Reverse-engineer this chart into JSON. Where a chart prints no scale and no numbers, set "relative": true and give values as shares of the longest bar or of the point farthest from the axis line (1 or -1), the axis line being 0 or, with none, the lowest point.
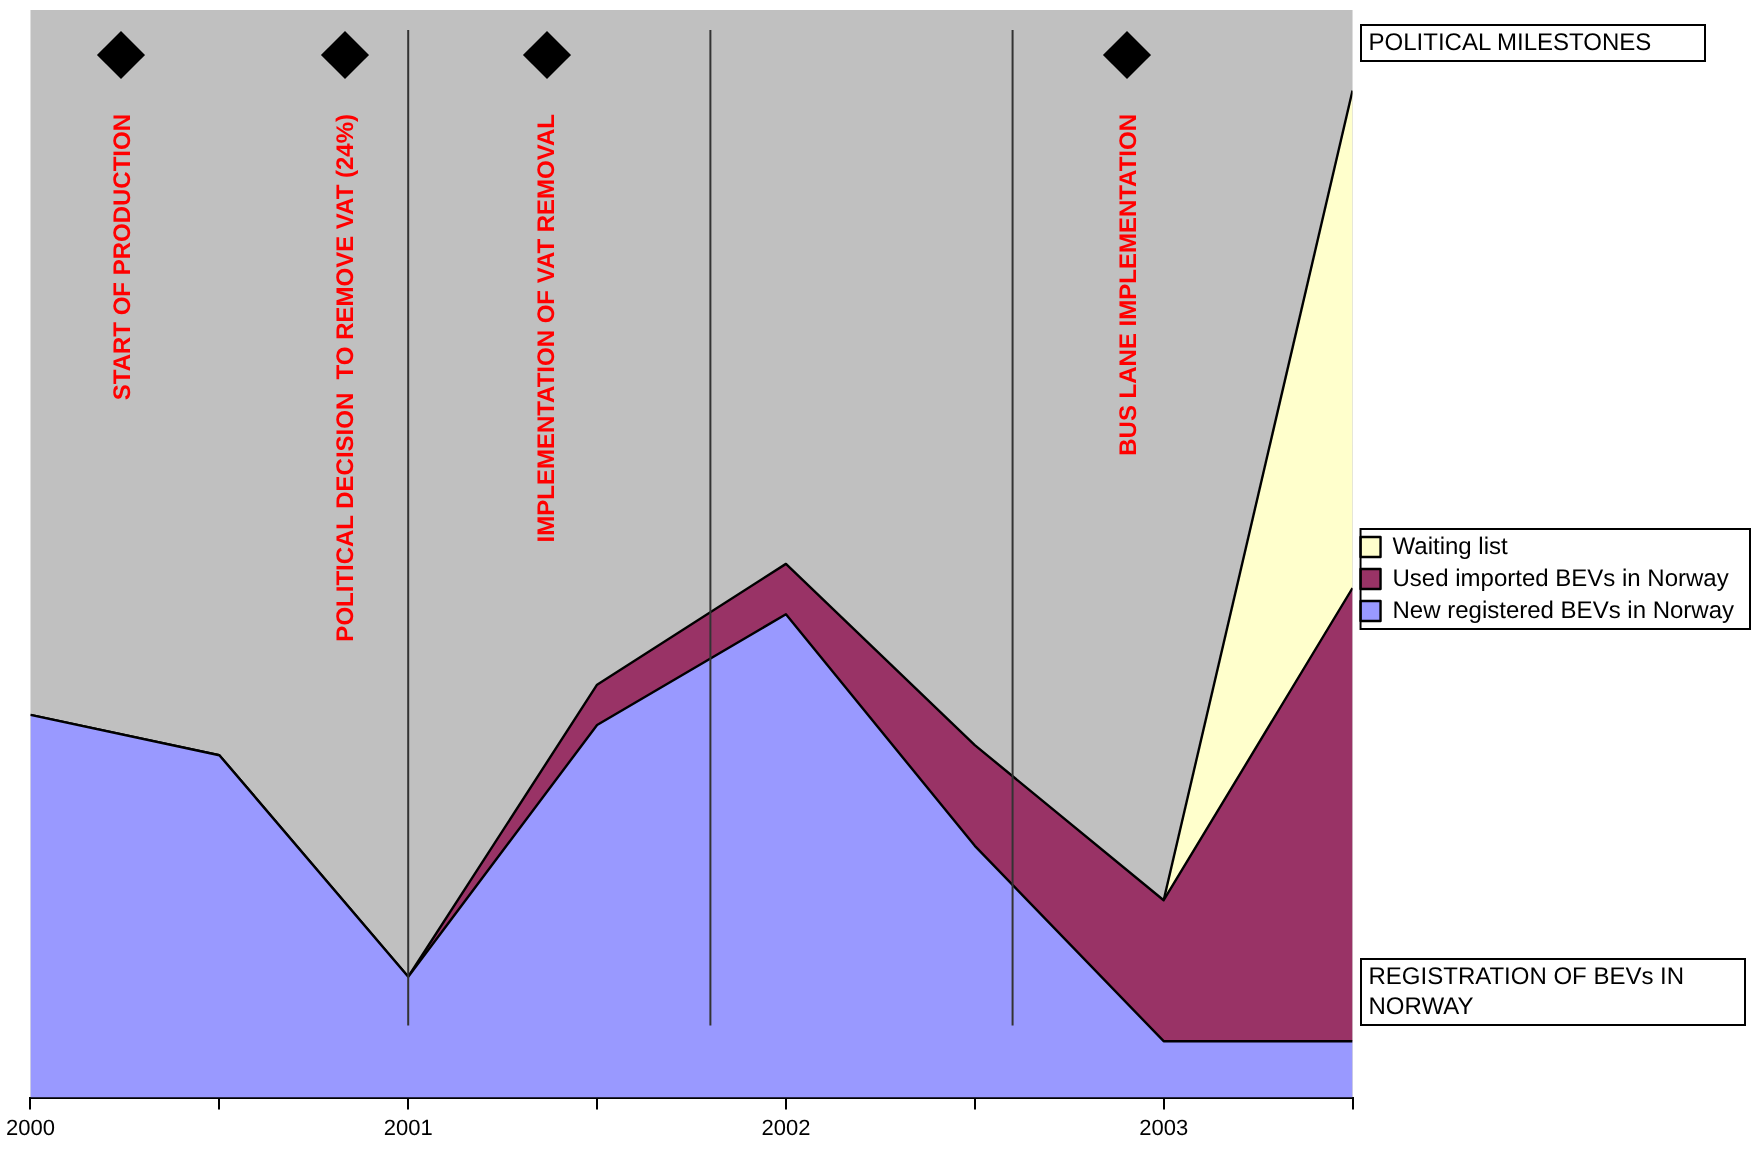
{
  "chart_data": {
    "type": "area",
    "stacked": true,
    "relative": true,
    "legend": "right",
    "grid": false,
    "x": [
      2000,
      2000.5,
      2001,
      2001.5,
      2002,
      2002.5,
      2003,
      2003.5
    ],
    "xlim": [
      2000,
      2003.5
    ],
    "xticks": [
      2000,
      {
        "value": 2000.5,
        "label": null
      },
      2001,
      {
        "value": 2001.5,
        "label": null
      },
      2002,
      {
        "value": 2002.5,
        "label": null
      },
      2003,
      {
        "value": 2003.5,
        "label": null
      }
    ],
    "series": [
      {
        "name": "New registered BEVs in Norway",
        "color": "#9999ff",
        "values": [
          0.38,
          0.34,
          0.12,
          0.37,
          0.48,
          0.25,
          0.056,
          0.056
        ]
      },
      {
        "name": "Used imported BEVs in Norway",
        "color": "#993366",
        "values": [
          0,
          0,
          0,
          0.04,
          0.05,
          0.1,
          0.14,
          0.45
        ]
      },
      {
        "name": "Waiting list",
        "color": "#ffffcc",
        "values": [
          null,
          null,
          null,
          null,
          null,
          null,
          0,
          0.494
        ]
      }
    ],
    "ref_lines": [
      {
        "axis": "x",
        "value": 2001,
        "color": "#333333"
      },
      {
        "axis": "x",
        "value": 2001.8,
        "color": "#333333"
      },
      {
        "axis": "x",
        "value": 2002.6,
        "color": "#333333"
      }
    ],
    "annotations": [
      "START OF PRODUCTION",
      "POLITICAL DECISION  TO REMOVE VAT (24%)",
      "IMPLEMENTATION OF VAT REMOVAL",
      "BUS LANE IMPLEMENTATION",
      "POLITICAL MILESTONES",
      "REGISTRATION OF BEVs IN NORWAY"
    ]
  }
}
